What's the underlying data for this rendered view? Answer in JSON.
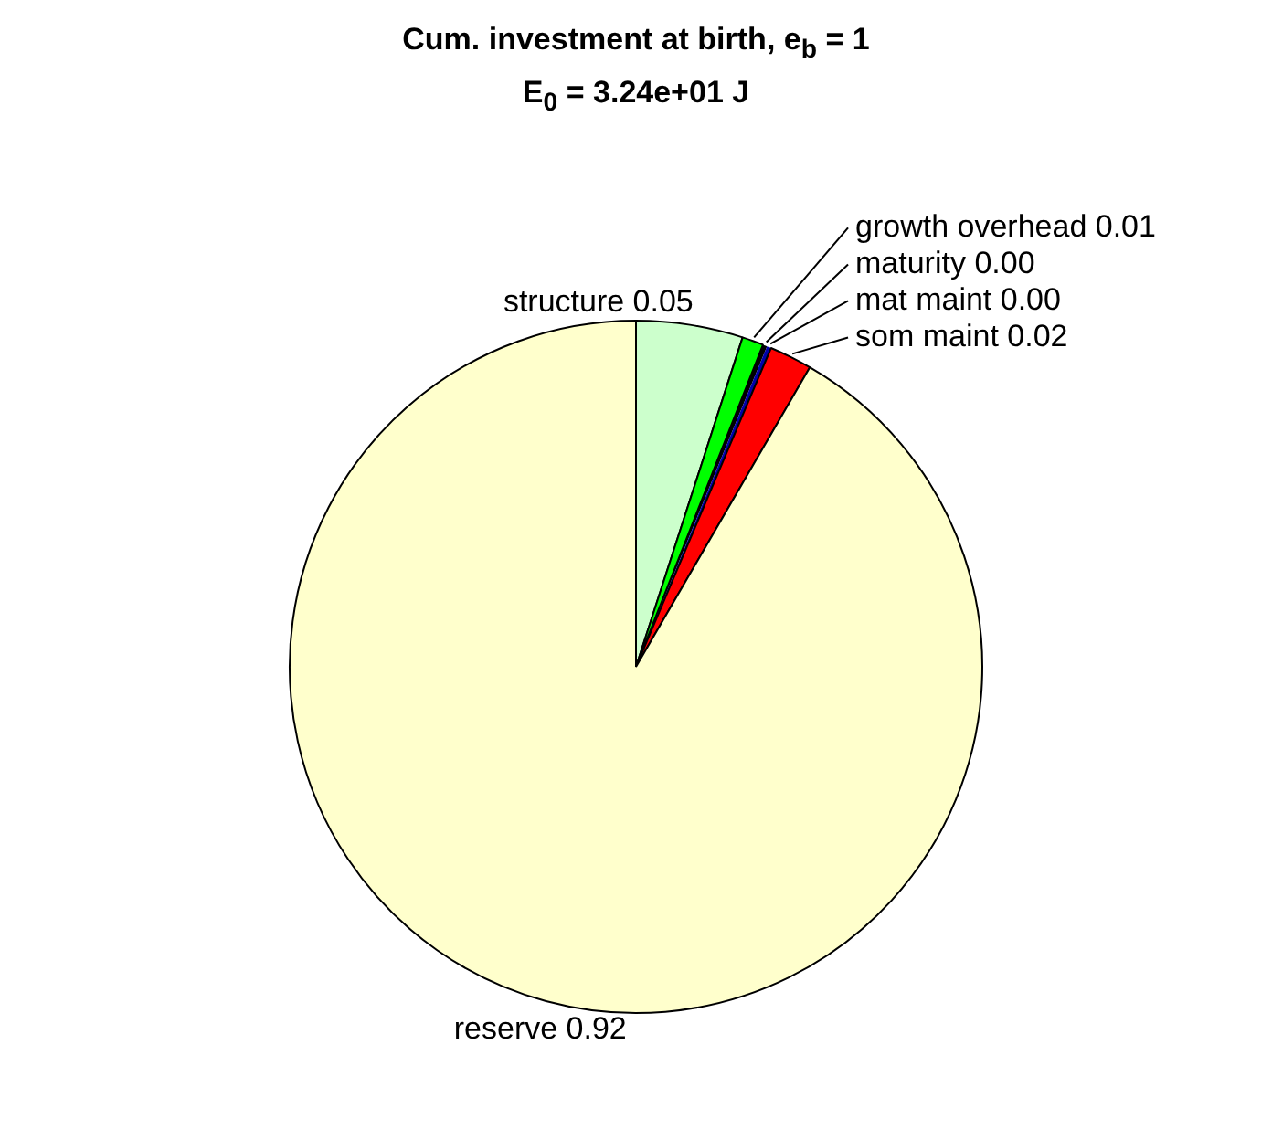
{
  "chart_data": {
    "type": "pie",
    "title": "Cum. investment at birth, e$_{b}$ = 1",
    "subtitle": "E$_{0}$ = 3.24e+01 J",
    "categories": [
      "structure",
      "growth overhead",
      "maturity",
      "mat maint",
      "som maint",
      "reserve"
    ],
    "values": [
      0.05,
      0.01,
      0.002,
      0.002,
      0.02,
      0.92
    ],
    "value_labels": [
      "0.05",
      "0.01",
      "0.00",
      "0.00",
      "0.02",
      "0.92"
    ],
    "colors": [
      "#ccffcc",
      "#00ff00",
      "#000000",
      "#0000aa",
      "#ff0000",
      "#ffffcc"
    ],
    "legend": false
  }
}
